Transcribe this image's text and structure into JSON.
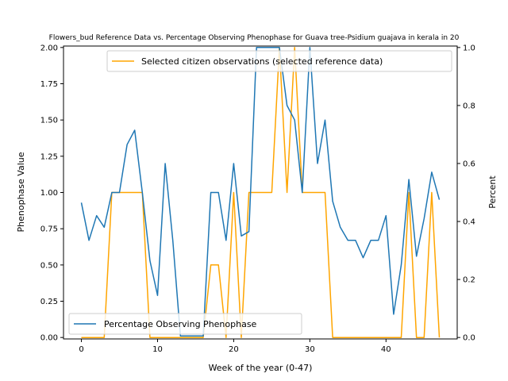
{
  "chart_data": {
    "type": "line",
    "title": "Flowers_bud Reference Data vs. Percentage Observing Phenophase for Guava tree-Psidium guajava in kerala in 20",
    "xlabel": "Week of the year (0-47)",
    "ylabel_left": "Phenophase Value",
    "ylabel_right": "Percent",
    "xlim": [
      -2.35,
      49.35
    ],
    "ylim_left": [
      -0.01,
      2.01
    ],
    "ylim_right": [
      -0.005,
      1.005
    ],
    "x_ticks": [
      0,
      10,
      20,
      30,
      40
    ],
    "y_ticks_left": [
      "0.00",
      "0.25",
      "0.50",
      "0.75",
      "1.00",
      "1.25",
      "1.50",
      "1.75",
      "2.00"
    ],
    "y_ticks_right": [
      "0.0",
      "0.2",
      "0.4",
      "0.6",
      "0.8",
      "1.0"
    ],
    "grid": false,
    "series": [
      {
        "name": "Percentage Observing Phenophase",
        "axis": "left",
        "color": "#1f77b4",
        "legend": "lower-left",
        "x": [
          0,
          1,
          2,
          3,
          4,
          5,
          6,
          7,
          8,
          9,
          10,
          11,
          12,
          13,
          14,
          15,
          16,
          17,
          18,
          19,
          20,
          21,
          22,
          23,
          24,
          25,
          26,
          27,
          28,
          29,
          30,
          31,
          32,
          33,
          34,
          35,
          36,
          37,
          38,
          39,
          40,
          41,
          42,
          43,
          44,
          45,
          46,
          47
        ],
        "values": [
          0.93,
          0.67,
          0.84,
          0.76,
          1.0,
          1.0,
          1.33,
          1.43,
          1.0,
          0.53,
          0.29,
          1.2,
          0.67,
          0.01,
          0.01,
          0.01,
          0.01,
          1.0,
          1.0,
          0.67,
          1.2,
          0.7,
          0.73,
          2.0,
          2.0,
          2.0,
          2.0,
          1.6,
          1.5,
          1.0,
          2.0,
          1.2,
          1.5,
          0.94,
          0.76,
          0.67,
          0.67,
          0.55,
          0.67,
          0.67,
          0.84,
          0.16,
          0.5,
          1.09,
          0.56,
          0.82,
          1.14,
          0.95
        ]
      },
      {
        "name": "Selected citizen observations (selected reference data)",
        "axis": "right",
        "color": "#ffa500",
        "legend": "upper-right",
        "x": [
          0,
          1,
          2,
          3,
          4,
          5,
          6,
          7,
          8,
          9,
          10,
          11,
          12,
          13,
          14,
          15,
          16,
          17,
          18,
          19,
          20,
          21,
          22,
          23,
          24,
          25,
          26,
          27,
          28,
          29,
          30,
          31,
          32,
          33,
          34,
          35,
          36,
          37,
          38,
          39,
          40,
          41,
          42,
          43,
          44,
          45,
          46,
          47
        ],
        "values": [
          0,
          0,
          0,
          0,
          0.5,
          0.5,
          0.5,
          0.5,
          0.5,
          0,
          0,
          0,
          0,
          0,
          0,
          0,
          0,
          0.25,
          0.25,
          0,
          0.5,
          0,
          0.5,
          0.5,
          0.5,
          0.5,
          1.0,
          0.5,
          1.0,
          0.5,
          0.5,
          0.5,
          0.5,
          0,
          0,
          0,
          0,
          0,
          0,
          0,
          0,
          0,
          0,
          0.5,
          0,
          0,
          0.5,
          0
        ]
      }
    ]
  }
}
